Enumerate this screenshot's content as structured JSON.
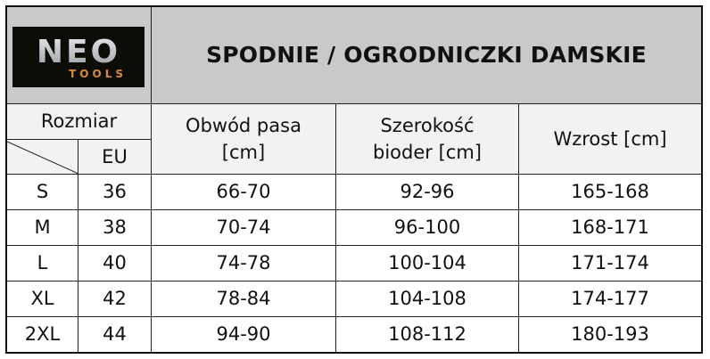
{
  "logo": {
    "brand": "NEO",
    "sub": "TOOLS",
    "accent": "#d98a3a"
  },
  "title": "SPODNIE / OGRODNICZKI DAMSKIE",
  "headers": {
    "size": "Rozmiar",
    "eu": "EU",
    "waist": "Obwód pasa [cm]",
    "hips": "Szerokość bioder [cm]",
    "height": "Wzrost [cm]"
  },
  "rows": [
    {
      "size": "S",
      "eu": "36",
      "waist": "66-70",
      "hips": "92-96",
      "height": "165-168"
    },
    {
      "size": "M",
      "eu": "38",
      "waist": "70-74",
      "hips": "96-100",
      "height": "168-171"
    },
    {
      "size": "L",
      "eu": "40",
      "waist": "74-78",
      "hips": "100-104",
      "height": "171-174"
    },
    {
      "size": "XL",
      "eu": "42",
      "waist": "78-84",
      "hips": "104-108",
      "height": "174-177"
    },
    {
      "size": "2XL",
      "eu": "44",
      "waist": "94-90",
      "hips": "108-112",
      "height": "180-193"
    }
  ]
}
